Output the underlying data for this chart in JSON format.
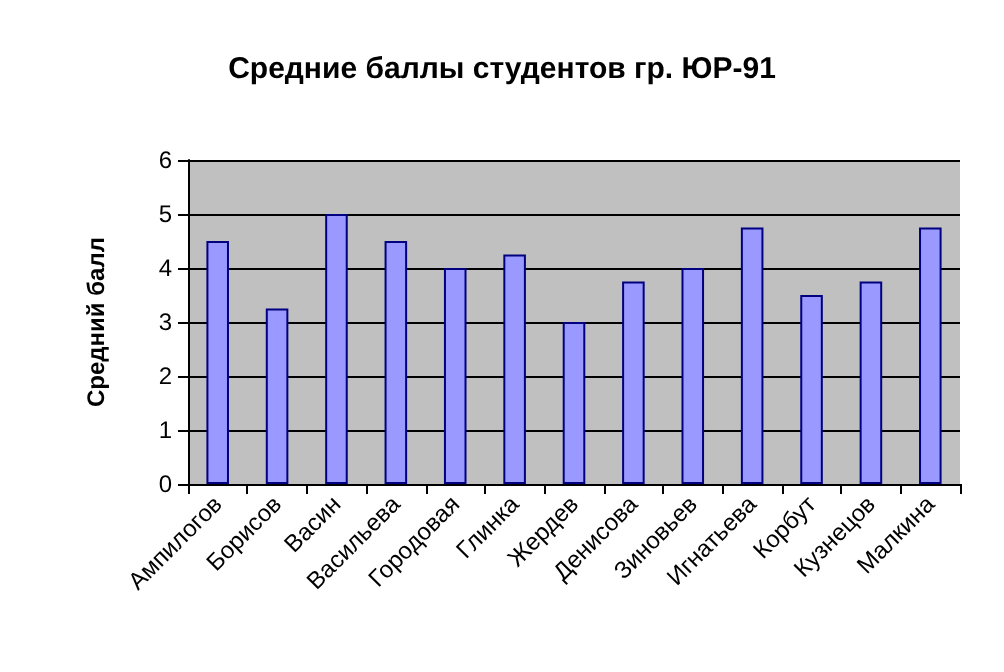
{
  "chart_data": {
    "type": "bar",
    "title": "Средние баллы студентов гр. ЮР-91",
    "ylabel": "Средний балл",
    "categories": [
      "Ампилогов",
      "Борисов",
      "Васин",
      "Васильева",
      "Городовая",
      "Глинка",
      "Жердев",
      "Денисова",
      "Зиновьев",
      "Игнатьева",
      "Корбут",
      "Кузнецов",
      "Малкина"
    ],
    "values": [
      4.5,
      3.25,
      5,
      4.5,
      4,
      4.25,
      3,
      3.75,
      4,
      4.75,
      3.5,
      3.75,
      4.75
    ],
    "color": "#9999ff",
    "ylim": [
      0,
      6
    ],
    "yticks": [
      0,
      1,
      2,
      3,
      4,
      5,
      6
    ],
    "grid": "y"
  }
}
